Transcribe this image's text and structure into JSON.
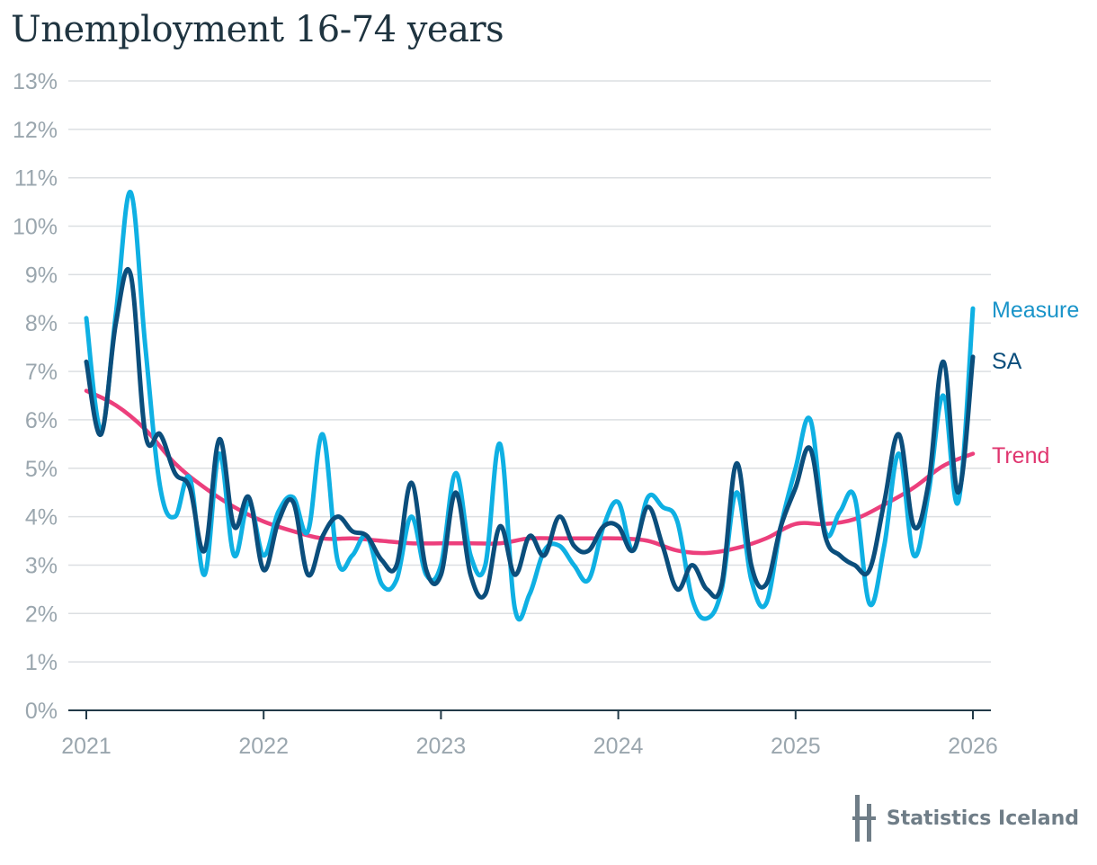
{
  "chart_data": {
    "type": "line",
    "title": "Unemployment 16-74 years",
    "xlabel": "",
    "ylabel": "",
    "xlim": [
      2021,
      2026
    ],
    "ylim": [
      0,
      13
    ],
    "y_ticks": [
      {
        "value": 0,
        "label": "0%"
      },
      {
        "value": 1,
        "label": "1%"
      },
      {
        "value": 2,
        "label": "2%"
      },
      {
        "value": 3,
        "label": "3%"
      },
      {
        "value": 4,
        "label": "4%"
      },
      {
        "value": 5,
        "label": "5%"
      },
      {
        "value": 6,
        "label": "6%"
      },
      {
        "value": 7,
        "label": "7%"
      },
      {
        "value": 8,
        "label": "8%"
      },
      {
        "value": 9,
        "label": "9%"
      },
      {
        "value": 10,
        "label": "10%"
      },
      {
        "value": 11,
        "label": "11%"
      },
      {
        "value": 12,
        "label": "12%"
      },
      {
        "value": 13,
        "label": "13%"
      }
    ],
    "x_ticks": [
      {
        "value": 2021,
        "label": "2021"
      },
      {
        "value": 2022,
        "label": "2022"
      },
      {
        "value": 2023,
        "label": "2023"
      },
      {
        "value": 2024,
        "label": "2024"
      },
      {
        "value": 2025,
        "label": "2025"
      },
      {
        "value": 2026,
        "label": "2026"
      }
    ],
    "legend_placement": "right-end-of-lines",
    "series": [
      {
        "name": "Measure",
        "color": "#0fb0e3",
        "x": [
          2021.0,
          2021.083,
          2021.167,
          2021.25,
          2021.333,
          2021.417,
          2021.5,
          2021.583,
          2021.667,
          2021.75,
          2021.833,
          2021.917,
          2022.0,
          2022.083,
          2022.167,
          2022.25,
          2022.333,
          2022.417,
          2022.5,
          2022.583,
          2022.667,
          2022.75,
          2022.833,
          2022.917,
          2023.0,
          2023.083,
          2023.167,
          2023.25,
          2023.333,
          2023.417,
          2023.5,
          2023.583,
          2023.667,
          2023.75,
          2023.833,
          2023.917,
          2024.0,
          2024.083,
          2024.167,
          2024.25,
          2024.333,
          2024.417,
          2024.5,
          2024.583,
          2024.667,
          2024.75,
          2024.833,
          2024.917,
          2025.0,
          2025.083,
          2025.167,
          2025.25,
          2025.333,
          2025.417,
          2025.5,
          2025.583,
          2025.667,
          2025.75,
          2025.833,
          2025.917,
          2026.0
        ],
        "values": [
          8.1,
          5.8,
          8.2,
          10.7,
          7.5,
          4.6,
          4.0,
          4.8,
          2.8,
          5.3,
          3.2,
          4.3,
          3.2,
          4.1,
          4.4,
          3.7,
          5.7,
          3.1,
          3.2,
          3.6,
          2.6,
          2.7,
          4.0,
          2.8,
          3.0,
          4.9,
          3.2,
          3.0,
          5.5,
          2.1,
          2.4,
          3.3,
          3.4,
          3.0,
          2.7,
          3.8,
          4.3,
          3.3,
          4.4,
          4.2,
          3.9,
          2.3,
          1.9,
          2.5,
          4.5,
          2.7,
          2.2,
          3.8,
          5.0,
          6.0,
          3.7,
          4.1,
          4.4,
          2.2,
          3.4,
          5.3,
          3.2,
          4.5,
          6.5,
          4.3,
          8.3
        ]
      },
      {
        "name": "SA",
        "color": "#0b4e7c",
        "x": [
          2021.0,
          2021.083,
          2021.167,
          2021.25,
          2021.333,
          2021.417,
          2021.5,
          2021.583,
          2021.667,
          2021.75,
          2021.833,
          2021.917,
          2022.0,
          2022.083,
          2022.167,
          2022.25,
          2022.333,
          2022.417,
          2022.5,
          2022.583,
          2022.667,
          2022.75,
          2022.833,
          2022.917,
          2023.0,
          2023.083,
          2023.167,
          2023.25,
          2023.333,
          2023.417,
          2023.5,
          2023.583,
          2023.667,
          2023.75,
          2023.833,
          2023.917,
          2024.0,
          2024.083,
          2024.167,
          2024.25,
          2024.333,
          2024.417,
          2024.5,
          2024.583,
          2024.667,
          2024.75,
          2024.833,
          2024.917,
          2025.0,
          2025.083,
          2025.167,
          2025.25,
          2025.333,
          2025.417,
          2025.5,
          2025.583,
          2025.667,
          2025.75,
          2025.833,
          2025.917,
          2026.0
        ],
        "values": [
          7.2,
          5.7,
          8.0,
          9.0,
          5.7,
          5.7,
          4.9,
          4.6,
          3.3,
          5.6,
          3.8,
          4.4,
          2.9,
          3.9,
          4.3,
          2.8,
          3.6,
          4.0,
          3.7,
          3.6,
          3.1,
          3.0,
          4.7,
          2.9,
          2.8,
          4.5,
          2.8,
          2.4,
          3.8,
          2.8,
          3.6,
          3.2,
          4.0,
          3.4,
          3.3,
          3.8,
          3.8,
          3.3,
          4.2,
          3.4,
          2.5,
          3.0,
          2.5,
          2.6,
          5.1,
          3.0,
          2.6,
          3.8,
          4.6,
          5.4,
          3.6,
          3.2,
          3.0,
          2.9,
          4.3,
          5.7,
          3.8,
          4.7,
          7.2,
          4.5,
          7.3
        ]
      },
      {
        "name": "Trend",
        "color": "#ec3f7c",
        "x": [
          2021.0,
          2021.167,
          2021.333,
          2021.5,
          2021.667,
          2021.833,
          2022.0,
          2022.167,
          2022.333,
          2022.5,
          2022.667,
          2022.833,
          2023.0,
          2023.167,
          2023.333,
          2023.5,
          2023.667,
          2023.833,
          2024.0,
          2024.167,
          2024.333,
          2024.5,
          2024.667,
          2024.833,
          2025.0,
          2025.167,
          2025.333,
          2025.5,
          2025.667,
          2025.833,
          2026.0
        ],
        "values": [
          6.6,
          6.3,
          5.8,
          5.1,
          4.6,
          4.2,
          3.9,
          3.7,
          3.55,
          3.55,
          3.5,
          3.45,
          3.45,
          3.45,
          3.45,
          3.55,
          3.55,
          3.55,
          3.55,
          3.5,
          3.3,
          3.25,
          3.35,
          3.55,
          3.85,
          3.85,
          3.95,
          4.25,
          4.6,
          5.05,
          5.3
        ]
      }
    ]
  },
  "branding": {
    "organization": "Statistics Iceland",
    "logo_icon": "statistics-iceland-logo-icon",
    "logo_color": "#6f7d87"
  }
}
